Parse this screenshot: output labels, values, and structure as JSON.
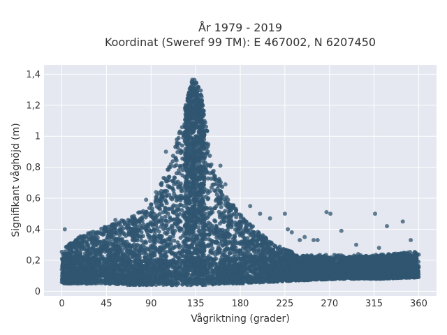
{
  "chart_data": {
    "type": "scatter",
    "title_line1": "År 1979 - 2019",
    "title_line2": "Koordinat (Sweref 99 TM): E 467002, N 6207450",
    "xlabel": "Vågriktning (grader)",
    "ylabel": "Signifikant våghöjd (m)",
    "xlim": [
      -18,
      378
    ],
    "ylim": [
      -0.03,
      1.46
    ],
    "x_ticks": [
      0,
      45,
      90,
      135,
      180,
      225,
      270,
      315,
      360
    ],
    "x_tick_labels": [
      "0",
      "45",
      "90",
      "135",
      "180",
      "225",
      "270",
      "315",
      "360"
    ],
    "y_ticks": [
      0,
      0.2,
      0.4,
      0.6,
      0.8,
      1.0,
      1.2,
      1.4
    ],
    "y_tick_labels": [
      "0",
      "0,2",
      "0,4",
      "0,6",
      "0,8",
      "1",
      "1,2",
      "1,4"
    ],
    "grid": true,
    "marker_color": "#2f5570",
    "plot_background": "#e5e8f0",
    "envelope": [
      {
        "x": 0,
        "ymin": 0.05,
        "ymax": 0.27
      },
      {
        "x": 20,
        "ymin": 0.05,
        "ymax": 0.36
      },
      {
        "x": 45,
        "ymin": 0.05,
        "ymax": 0.42
      },
      {
        "x": 70,
        "ymin": 0.04,
        "ymax": 0.48
      },
      {
        "x": 90,
        "ymin": 0.04,
        "ymax": 0.56
      },
      {
        "x": 110,
        "ymin": 0.04,
        "ymax": 0.85
      },
      {
        "x": 125,
        "ymin": 0.04,
        "ymax": 1.2
      },
      {
        "x": 132,
        "ymin": 0.04,
        "ymax": 1.39
      },
      {
        "x": 140,
        "ymin": 0.04,
        "ymax": 1.3
      },
      {
        "x": 150,
        "ymin": 0.04,
        "ymax": 0.9
      },
      {
        "x": 165,
        "ymin": 0.05,
        "ymax": 0.62
      },
      {
        "x": 180,
        "ymin": 0.05,
        "ymax": 0.5
      },
      {
        "x": 210,
        "ymin": 0.06,
        "ymax": 0.32
      },
      {
        "x": 240,
        "ymin": 0.07,
        "ymax": 0.23
      },
      {
        "x": 280,
        "ymin": 0.08,
        "ymax": 0.22
      },
      {
        "x": 320,
        "ymin": 0.08,
        "ymax": 0.23
      },
      {
        "x": 360,
        "ymin": 0.09,
        "ymax": 0.26
      }
    ],
    "outliers": [
      {
        "x": 3,
        "y": 0.4
      },
      {
        "x": 54,
        "y": 0.46
      },
      {
        "x": 85,
        "y": 0.59
      },
      {
        "x": 95,
        "y": 0.64
      },
      {
        "x": 105,
        "y": 0.9
      },
      {
        "x": 110,
        "y": 0.82
      },
      {
        "x": 118,
        "y": 0.78
      },
      {
        "x": 160,
        "y": 0.81
      },
      {
        "x": 165,
        "y": 0.69
      },
      {
        "x": 190,
        "y": 0.55
      },
      {
        "x": 200,
        "y": 0.5
      },
      {
        "x": 210,
        "y": 0.47
      },
      {
        "x": 225,
        "y": 0.5
      },
      {
        "x": 228,
        "y": 0.4
      },
      {
        "x": 232,
        "y": 0.38
      },
      {
        "x": 240,
        "y": 0.33
      },
      {
        "x": 245,
        "y": 0.35
      },
      {
        "x": 254,
        "y": 0.33
      },
      {
        "x": 258,
        "y": 0.33
      },
      {
        "x": 267,
        "y": 0.51
      },
      {
        "x": 271,
        "y": 0.5
      },
      {
        "x": 282,
        "y": 0.39
      },
      {
        "x": 297,
        "y": 0.3
      },
      {
        "x": 316,
        "y": 0.5
      },
      {
        "x": 320,
        "y": 0.28
      },
      {
        "x": 328,
        "y": 0.42
      },
      {
        "x": 344,
        "y": 0.45
      },
      {
        "x": 352,
        "y": 0.33
      }
    ]
  }
}
